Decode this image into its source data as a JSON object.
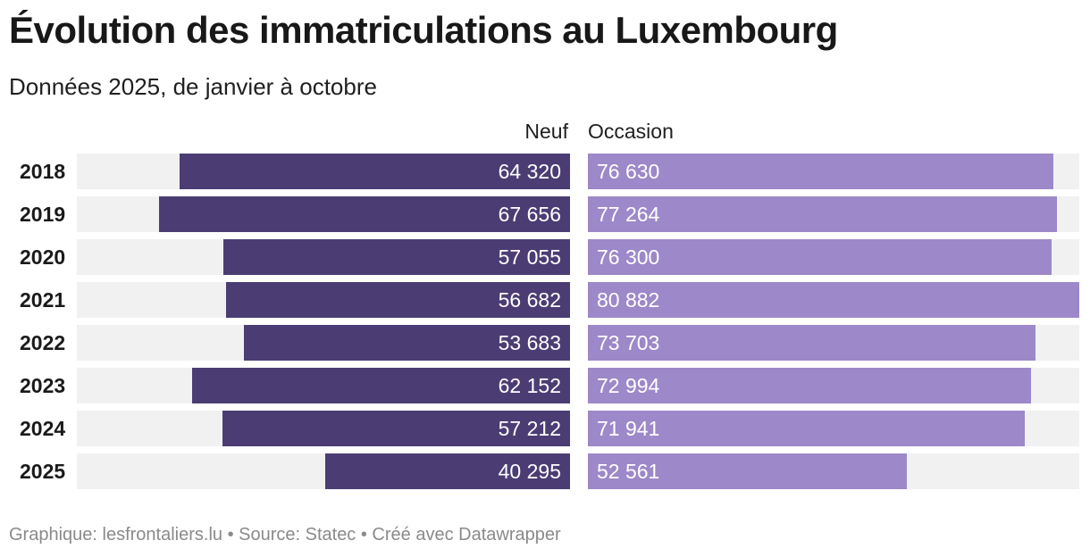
{
  "title": "Évolution des immatriculations au Luxembourg",
  "subtitle": "Données 2025, de janvier à octobre",
  "footer": "Graphique: lesfrontaliers.lu • Source: Statec • Créé avec Datawrapper",
  "colors": {
    "neuf": "#4b3d74",
    "occasion": "#9d88c9",
    "track": "#f1f1f1"
  },
  "chart_data": {
    "type": "bar",
    "orientation": "horizontal-butterfly",
    "categories": [
      "2018",
      "2019",
      "2020",
      "2021",
      "2022",
      "2023",
      "2024",
      "2025"
    ],
    "series": [
      {
        "name": "Neuf",
        "values": [
          64320,
          67656,
          57055,
          56682,
          53683,
          62152,
          57212,
          40295
        ],
        "labels": [
          "64 320",
          "67 656",
          "57 055",
          "56 682",
          "53 683",
          "62 152",
          "57 212",
          "40 295"
        ]
      },
      {
        "name": "Occasion",
        "values": [
          76630,
          77264,
          76300,
          80882,
          73703,
          72994,
          71941,
          52561
        ],
        "labels": [
          "76 630",
          "77 264",
          "76 300",
          "80 882",
          "73 703",
          "72 994",
          "71 941",
          "52 561"
        ]
      }
    ],
    "xlim": [
      0,
      80882
    ]
  }
}
